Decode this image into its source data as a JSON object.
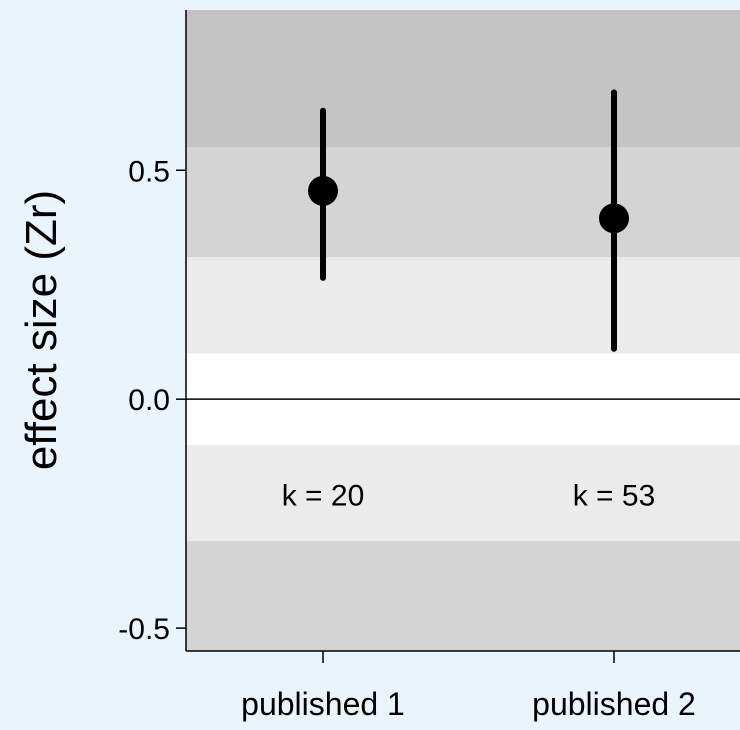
{
  "chart_data": {
    "type": "scatter",
    "ylabel": "effect size (Zr)",
    "ylim": [
      -0.55,
      0.85
    ],
    "yticks": [
      {
        "value": -0.5,
        "label": "-0.5"
      },
      {
        "value": 0.0,
        "label": "0.0"
      },
      {
        "value": 0.5,
        "label": "0.5"
      }
    ],
    "categories": [
      "published 1",
      "published 2"
    ],
    "points": [
      {
        "category": "published 1",
        "estimate": 0.455,
        "ci_low": 0.265,
        "ci_high": 0.63,
        "k_label": "k = 20"
      },
      {
        "category": "published 2",
        "estimate": 0.395,
        "ci_low": 0.11,
        "ci_high": 0.67,
        "k_label": "k = 53"
      }
    ],
    "bands": [
      {
        "from": 0.55,
        "to": 0.85,
        "color": "#c4c4c4"
      },
      {
        "from": 0.31,
        "to": 0.55,
        "color": "#d4d4d4"
      },
      {
        "from": 0.1,
        "to": 0.31,
        "color": "#ebebeb"
      },
      {
        "from": -0.1,
        "to": 0.1,
        "color": "#ffffff"
      },
      {
        "from": -0.31,
        "to": -0.1,
        "color": "#ebebeb"
      },
      {
        "from": -0.55,
        "to": -0.31,
        "color": "#d4d4d4"
      }
    ],
    "k_label_y": -0.21,
    "zero_line": true,
    "colors": {
      "marker": "#000000",
      "background": "#eaf4fb"
    }
  }
}
